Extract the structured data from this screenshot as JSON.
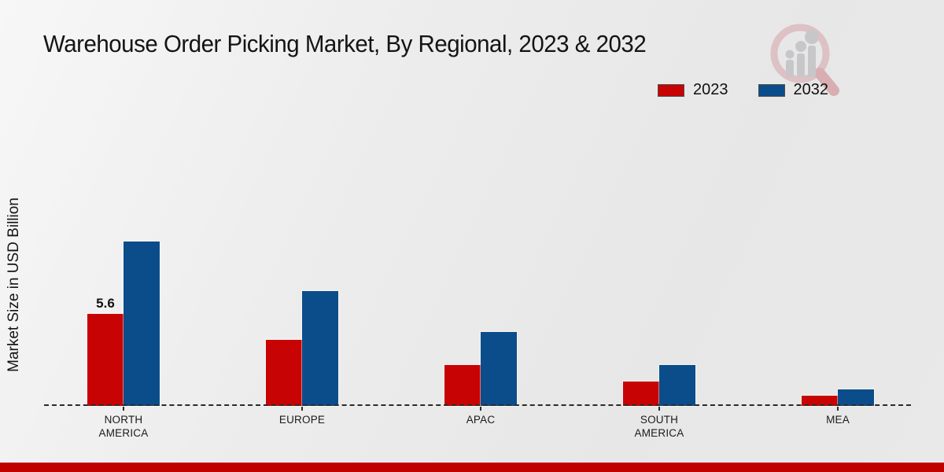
{
  "title": "Warehouse Order Picking Market, By Regional, 2023 & 2032",
  "y_axis_label": "Market Size in USD Billion",
  "watermark_icon": "bar-chart-magnifier-logo",
  "footer": {
    "color": "#c00000"
  },
  "chart_data": {
    "type": "bar",
    "categories": [
      "NORTH AMERICA",
      "EUROPE",
      "APAC",
      "SOUTH AMERICA",
      "MEA"
    ],
    "series": [
      {
        "name": "2023",
        "color": "#c80303",
        "values": [
          5.6,
          4.0,
          2.5,
          1.5,
          0.6
        ]
      },
      {
        "name": "2032",
        "color": "#0b4d8a",
        "values": [
          10.0,
          7.0,
          4.5,
          2.5,
          1.0
        ]
      }
    ],
    "bar_labels": [
      {
        "category": "NORTH AMERICA",
        "series": "2023",
        "text": "5.6"
      }
    ],
    "title": "Warehouse Order Picking Market, By Regional, 2023 & 2032",
    "xlabel": "",
    "ylabel": "Market Size in USD Billion",
    "ylim": [
      0,
      12
    ],
    "grid": false,
    "baseline_style": "dashed",
    "legend_position": "top-right"
  }
}
